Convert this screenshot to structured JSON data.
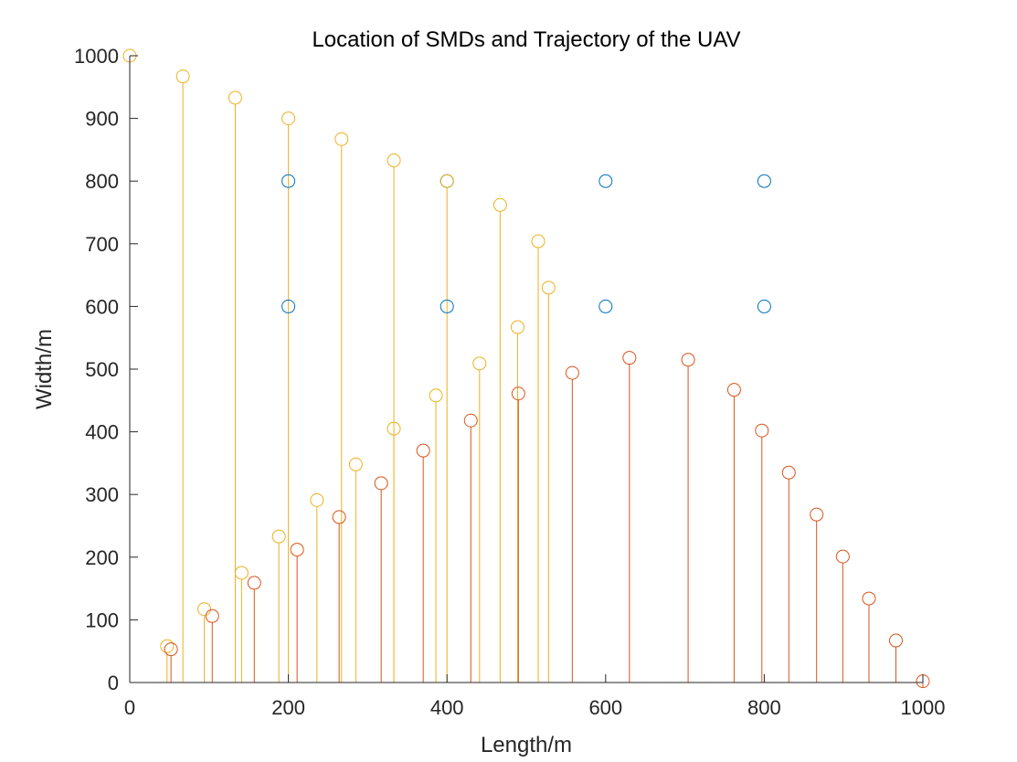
{
  "chart_data": {
    "type": "scatter",
    "title": "Location of SMDs and Trajectory of the UAV",
    "xlabel": "Length/m",
    "ylabel": "Width/m",
    "xlim": [
      0,
      1000
    ],
    "ylim": [
      0,
      1000
    ],
    "xticks": [
      "0",
      "200",
      "400",
      "600",
      "800",
      "1000"
    ],
    "yticks": [
      "0",
      "100",
      "200",
      "300",
      "400",
      "500",
      "600",
      "700",
      "800",
      "900",
      "1000"
    ],
    "grid": false,
    "colors": {
      "blue": "#0072BD",
      "orange": "#D95319",
      "yellow": "#EDB120"
    },
    "series": [
      {
        "color": "#0072BD",
        "marker": "circle",
        "stem": false,
        "points": [
          [
            200,
            800
          ],
          [
            400,
            800
          ],
          [
            600,
            800
          ],
          [
            800,
            800
          ],
          [
            200,
            600
          ],
          [
            400,
            600
          ],
          [
            600,
            600
          ],
          [
            800,
            600
          ]
        ]
      },
      {
        "color": "#EDB120",
        "marker": "circle",
        "stem": true,
        "points": [
          [
            0,
            1000
          ],
          [
            67,
            967
          ],
          [
            133,
            933
          ],
          [
            200,
            900
          ],
          [
            267,
            867
          ],
          [
            333,
            833
          ],
          [
            400,
            800
          ],
          [
            467,
            762
          ],
          [
            515,
            704
          ],
          [
            528,
            630
          ],
          [
            489,
            567
          ],
          [
            441,
            509
          ],
          [
            386,
            458
          ],
          [
            333,
            405
          ],
          [
            285,
            348
          ],
          [
            236,
            291
          ],
          [
            188,
            233
          ],
          [
            141,
            175
          ],
          [
            94,
            117
          ],
          [
            47,
            58
          ]
        ]
      },
      {
        "color": "#D95319",
        "marker": "circle",
        "stem": true,
        "points": [
          [
            52,
            53
          ],
          [
            104,
            106
          ],
          [
            157,
            159
          ],
          [
            211,
            212
          ],
          [
            264,
            264
          ],
          [
            317,
            318
          ],
          [
            370,
            370
          ],
          [
            430,
            418
          ],
          [
            490,
            461
          ],
          [
            558,
            494
          ],
          [
            630,
            518
          ],
          [
            704,
            515
          ],
          [
            762,
            467
          ],
          [
            797,
            402
          ],
          [
            831,
            335
          ],
          [
            866,
            268
          ],
          [
            899,
            201
          ],
          [
            932,
            134
          ],
          [
            966,
            67
          ],
          [
            1000,
            2
          ]
        ]
      }
    ]
  }
}
